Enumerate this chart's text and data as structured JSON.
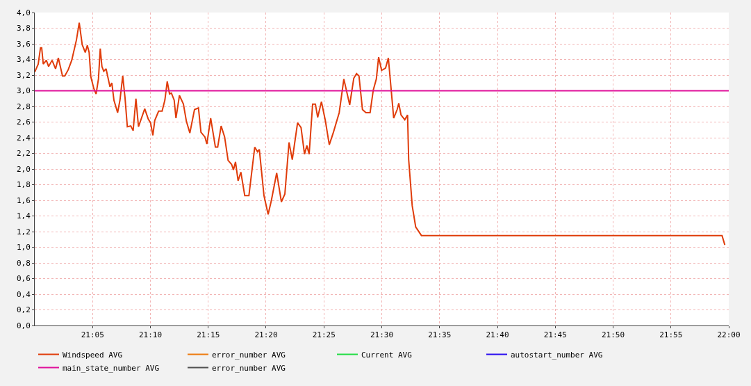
{
  "chart_data": {
    "type": "line",
    "xlim": [
      21.0,
      22.0
    ],
    "xticks": [
      {
        "value": 21.0833,
        "label": "21:05"
      },
      {
        "value": 21.1667,
        "label": "21:10"
      },
      {
        "value": 21.25,
        "label": "21:15"
      },
      {
        "value": 21.3333,
        "label": "21:20"
      },
      {
        "value": 21.4167,
        "label": "21:25"
      },
      {
        "value": 21.5,
        "label": "21:30"
      },
      {
        "value": 21.5833,
        "label": "21:35"
      },
      {
        "value": 21.6667,
        "label": "21:40"
      },
      {
        "value": 21.75,
        "label": "21:45"
      },
      {
        "value": 21.8333,
        "label": "21:50"
      },
      {
        "value": 21.9167,
        "label": "21:55"
      },
      {
        "value": 22.0,
        "label": "22:00"
      }
    ],
    "ylim": [
      0,
      4
    ],
    "yticks": [
      {
        "value": 0,
        "label": "0,0"
      },
      {
        "value": 0.2,
        "label": "0,2"
      },
      {
        "value": 0.4,
        "label": "0,4"
      },
      {
        "value": 0.6,
        "label": "0,6"
      },
      {
        "value": 0.8,
        "label": "0,8"
      },
      {
        "value": 1.0,
        "label": "1,0"
      },
      {
        "value": 1.2,
        "label": "1,2"
      },
      {
        "value": 1.4,
        "label": "1,4"
      },
      {
        "value": 1.6,
        "label": "1,6"
      },
      {
        "value": 1.8,
        "label": "1,8"
      },
      {
        "value": 2.0,
        "label": "2,0"
      },
      {
        "value": 2.2,
        "label": "2,2"
      },
      {
        "value": 2.4,
        "label": "2,4"
      },
      {
        "value": 2.6,
        "label": "2,6"
      },
      {
        "value": 2.8,
        "label": "2,8"
      },
      {
        "value": 3.0,
        "label": "3,0"
      },
      {
        "value": 3.2,
        "label": "3,2"
      },
      {
        "value": 3.4,
        "label": "3,4"
      },
      {
        "value": 3.6,
        "label": "3,6"
      },
      {
        "value": 3.8,
        "label": "3,8"
      },
      {
        "value": 4.0,
        "label": "4,0"
      }
    ],
    "grid": true,
    "legend": "bottom",
    "series": [
      {
        "name": "Windspeed AVG",
        "color": "#e03c0a",
        "x": [
          21.0,
          21.005,
          21.0083,
          21.01,
          21.0123,
          21.0167,
          21.02,
          21.025,
          21.03,
          21.034,
          21.04,
          21.0433,
          21.0483,
          21.0533,
          21.0601,
          21.0641,
          21.0684,
          21.0728,
          21.0758,
          21.0784,
          21.0808,
          21.0851,
          21.0884,
          21.0918,
          21.0944,
          21.0968,
          21.0994,
          21.1028,
          21.1084,
          21.1111,
          21.1141,
          21.1194,
          21.1228,
          21.1268,
          21.1301,
          21.1334,
          21.1384,
          21.1418,
          21.1458,
          21.1495,
          21.1585,
          21.1635,
          21.1669,
          21.1702,
          21.1729,
          21.1785,
          21.1835,
          21.1875,
          21.1909,
          21.1942,
          21.1969,
          21.2009,
          21.2035,
          21.2085,
          21.2142,
          21.2185,
          21.2235,
          21.2302,
          21.2359,
          21.2395,
          21.2452,
          21.248,
          21.2535,
          21.2603,
          21.2636,
          21.2686,
          21.2736,
          21.2786,
          21.2836,
          21.2863,
          21.2893,
          21.293,
          21.297,
          21.3026,
          21.3086,
          21.317,
          21.321,
          21.3236,
          21.3303,
          21.3363,
          21.341,
          21.3486,
          21.3554,
          21.3604,
          21.3664,
          21.3711,
          21.3787,
          21.3837,
          21.3887,
          21.3921,
          21.3954,
          21.4004,
          21.4044,
          21.4077,
          21.4131,
          21.4187,
          21.4244,
          21.4304,
          21.4387,
          21.4454,
          21.4538,
          21.4597,
          21.4637,
          21.4672,
          21.4722,
          21.4772,
          21.4832,
          21.4878,
          21.4922,
          21.4955,
          21.4998,
          21.5055,
          21.5095,
          21.5138,
          21.5172,
          21.5222,
          21.5245,
          21.5278,
          21.5332,
          21.5372,
          21.5388,
          21.5439,
          21.5489,
          21.5572,
          21.9903,
          21.9943
        ],
        "values": [
          3.24,
          3.34,
          3.55,
          3.55,
          3.34,
          3.39,
          3.31,
          3.39,
          3.28,
          3.42,
          3.19,
          3.19,
          3.27,
          3.39,
          3.65,
          3.87,
          3.59,
          3.49,
          3.58,
          3.49,
          3.18,
          3.03,
          2.96,
          3.15,
          3.54,
          3.31,
          3.25,
          3.28,
          3.05,
          3.1,
          2.88,
          2.72,
          2.88,
          3.19,
          2.91,
          2.54,
          2.55,
          2.49,
          2.9,
          2.54,
          2.77,
          2.64,
          2.59,
          2.43,
          2.62,
          2.74,
          2.74,
          2.88,
          3.12,
          2.96,
          2.97,
          2.88,
          2.65,
          2.94,
          2.83,
          2.61,
          2.46,
          2.76,
          2.78,
          2.47,
          2.41,
          2.32,
          2.65,
          2.28,
          2.28,
          2.55,
          2.41,
          2.11,
          2.06,
          1.99,
          2.09,
          1.85,
          1.96,
          1.66,
          1.66,
          2.28,
          2.22,
          2.25,
          1.66,
          1.42,
          1.6,
          1.95,
          1.58,
          1.68,
          2.34,
          2.12,
          2.59,
          2.53,
          2.19,
          2.3,
          2.19,
          2.83,
          2.83,
          2.66,
          2.86,
          2.62,
          2.31,
          2.47,
          2.72,
          3.15,
          2.82,
          3.16,
          3.22,
          3.19,
          2.76,
          2.72,
          2.72,
          3.01,
          3.15,
          3.43,
          3.26,
          3.29,
          3.42,
          2.99,
          2.65,
          2.76,
          2.84,
          2.69,
          2.63,
          2.69,
          2.12,
          1.53,
          1.26,
          1.15,
          1.15,
          1.03
        ]
      },
      {
        "name": "error_number AVG",
        "color": "#ee7a0e",
        "values": [
          null,
          null
        ]
      },
      {
        "name": "Current AVG",
        "color": "#22dd44",
        "values": [
          null,
          null
        ]
      },
      {
        "name": "autostart_number AVG",
        "color": "#2a0ef0",
        "values": [
          null,
          null
        ]
      },
      {
        "name": "main_state_number AVG",
        "color": "#e0109a",
        "x": [
          21.0,
          22.0
        ],
        "values": [
          3.0,
          3.0
        ]
      },
      {
        "name": "error_number AVG",
        "color": "#505050",
        "values": [
          null,
          null
        ]
      }
    ]
  }
}
